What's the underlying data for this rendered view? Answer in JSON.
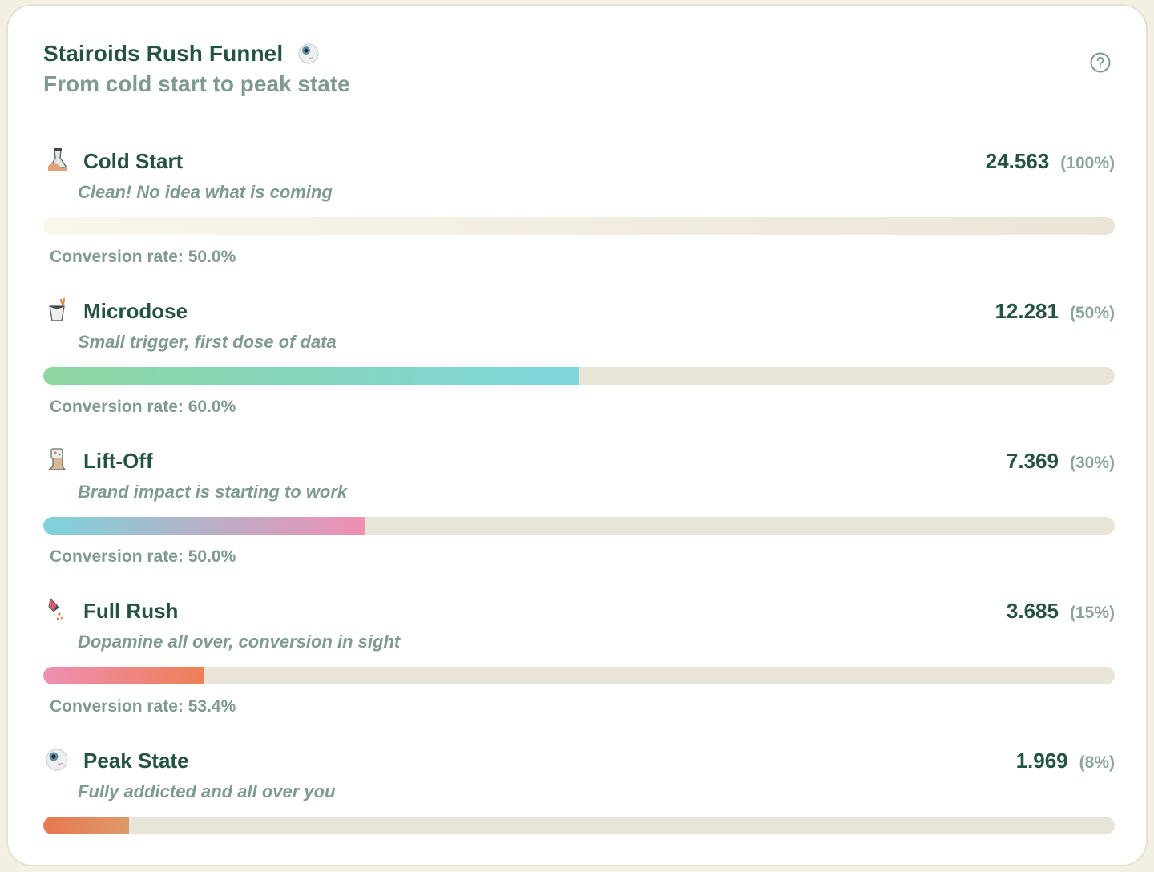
{
  "header": {
    "title": "Stairoids Rush Funnel",
    "title_icon": "eyeball-icon",
    "subtitle": "From cold start to peak state",
    "help_icon": "help-circle-icon"
  },
  "chart_data": {
    "type": "bar",
    "title": "Stairoids Rush Funnel",
    "subtitle": "From cold start to peak state",
    "categories": [
      "Cold Start",
      "Microdose",
      "Lift-Off",
      "Full Rush",
      "Peak State"
    ],
    "values": [
      24563,
      12281,
      7369,
      3685,
      1969
    ],
    "stages": [
      {
        "label": "Cold Start",
        "icon": "flask-icon",
        "description": "Clean! No idea what is coming",
        "value_text": "24.563",
        "percent_text": "(100%)",
        "percent": 100,
        "conversion_text": "Conversion rate: 50.0%",
        "gradient": [
          "#f9f6ea",
          "#ebe5d6"
        ]
      },
      {
        "label": "Microdose",
        "icon": "cup-icon",
        "description": "Small trigger, first dose of data",
        "value_text": "12.281",
        "percent_text": "(50%)",
        "percent": 50,
        "conversion_text": "Conversion rate: 60.0%",
        "gradient": [
          "#8ed6a0",
          "#7dd6dc"
        ]
      },
      {
        "label": "Lift-Off",
        "icon": "boot-icon",
        "description": "Brand impact is starting to work",
        "value_text": "7.369",
        "percent_text": "(30%)",
        "percent": 30,
        "conversion_text": "Conversion rate: 50.0%",
        "gradient": [
          "#7dd3dc",
          "#ef8fb4"
        ]
      },
      {
        "label": "Full Rush",
        "icon": "rocket-icon",
        "description": "Dopamine all over, conversion in sight",
        "value_text": "3.685",
        "percent_text": "(15%)",
        "percent": 15,
        "conversion_text": "Conversion rate: 53.4%",
        "gradient": [
          "#ef8fb4",
          "#ee7f55"
        ]
      },
      {
        "label": "Peak State",
        "icon": "eyeball-icon",
        "description": "Fully addicted and all over you",
        "value_text": "1.969",
        "percent_text": "(8%)",
        "percent": 8,
        "conversion_text": "",
        "gradient": [
          "#e8774f",
          "#dc9a6c"
        ]
      }
    ]
  }
}
